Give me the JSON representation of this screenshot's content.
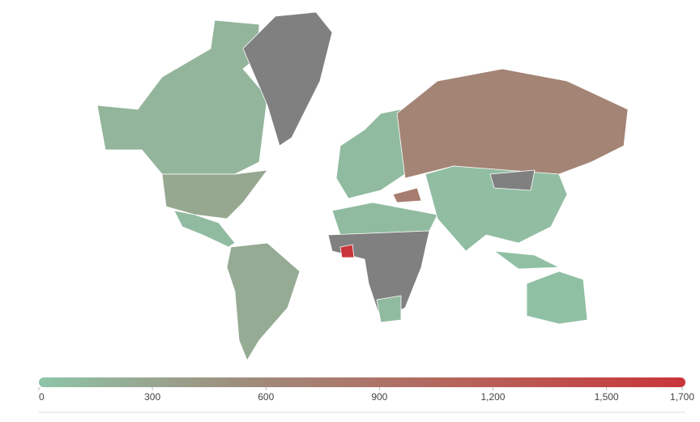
{
  "chart_data": {
    "type": "choropleth",
    "values": [
      150,
      280,
      100,
      null,
      250,
      100,
      650,
      750,
      100,
      null,
      1700,
      80,
      null,
      50,
      60,
      100
    ],
    "colors": [
      "#8ec5a8",
      "#a08a7a",
      "#b7625a",
      "#c9353a"
    ],
    "null_color": "#808080",
    "xlim": [
      0,
      1700
    ],
    "xticks": [
      0,
      300,
      600,
      900,
      {
        "value": 1200,
        "label": "1,200"
      },
      {
        "value": 1500,
        "label": "1,500"
      },
      {
        "value": 1700,
        "label": "1,700"
      }
    ]
  }
}
